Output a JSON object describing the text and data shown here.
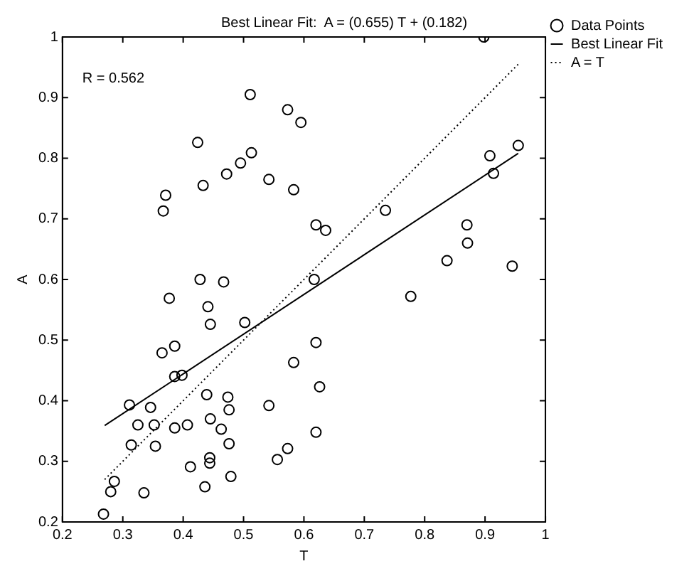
{
  "chart_data": {
    "type": "scatter",
    "title": "Best Linear Fit:  A = (0.655) T + (0.182)",
    "xlabel": "T",
    "ylabel": "A",
    "annotations": [
      "R = 0.562"
    ],
    "xlim": [
      0.2,
      1
    ],
    "xticks": [
      0.2,
      0.3,
      0.4,
      0.5,
      0.6,
      0.7,
      0.8,
      0.9,
      1
    ],
    "ylim": [
      0.2,
      1
    ],
    "yticks": [
      0.2,
      0.3,
      0.4,
      0.5,
      0.6,
      0.7,
      0.8,
      0.9,
      1
    ],
    "grid": false,
    "legend": "top right",
    "series": [
      {
        "name": "Data Points",
        "type": "scatter",
        "color": "#000000",
        "marker": "circle",
        "x": [
          0.268,
          0.28,
          0.286,
          0.335,
          0.311,
          0.314,
          0.325,
          0.346,
          0.352,
          0.354,
          0.365,
          0.377,
          0.386,
          0.386,
          0.398,
          0.386,
          0.407,
          0.412,
          0.428,
          0.441,
          0.445,
          0.439,
          0.445,
          0.444,
          0.444,
          0.436,
          0.467,
          0.463,
          0.474,
          0.476,
          0.476,
          0.479,
          0.502,
          0.542,
          0.556,
          0.573,
          0.583,
          0.617,
          0.777,
          0.62,
          0.626,
          0.62,
          0.511,
          0.573,
          0.595,
          0.424,
          0.513,
          0.495,
          0.472,
          0.542,
          0.433,
          0.583,
          0.371,
          0.367,
          0.898,
          0.735,
          0.62,
          0.636,
          0.955,
          0.908,
          0.914,
          0.87,
          0.871,
          0.837,
          0.945
        ],
        "values": [
          0.213,
          0.25,
          0.267,
          0.248,
          0.393,
          0.327,
          0.36,
          0.389,
          0.36,
          0.325,
          0.479,
          0.569,
          0.49,
          0.44,
          0.442,
          0.355,
          0.36,
          0.291,
          0.6,
          0.555,
          0.526,
          0.41,
          0.37,
          0.306,
          0.297,
          0.258,
          0.596,
          0.353,
          0.406,
          0.385,
          0.329,
          0.275,
          0.529,
          0.392,
          0.303,
          0.321,
          0.463,
          0.6,
          0.572,
          0.496,
          0.423,
          0.348,
          0.905,
          0.88,
          0.859,
          0.826,
          0.809,
          0.792,
          0.774,
          0.765,
          0.755,
          0.748,
          0.739,
          0.713,
          1.0,
          0.714,
          0.69,
          0.681,
          0.821,
          0.804,
          0.775,
          0.69,
          0.66,
          0.631,
          0.622
        ]
      },
      {
        "name": "Best Linear Fit",
        "type": "line",
        "color": "#000000",
        "marker": "none",
        "line_style": "solid",
        "x": [
          0.27,
          0.955
        ],
        "values": [
          0.359,
          0.808
        ]
      },
      {
        "name": "A = T",
        "type": "line",
        "color": "#000000",
        "marker": "none",
        "line_style": "dotted",
        "x": [
          0.27,
          0.955
        ],
        "values": [
          0.27,
          0.955
        ]
      }
    ]
  }
}
